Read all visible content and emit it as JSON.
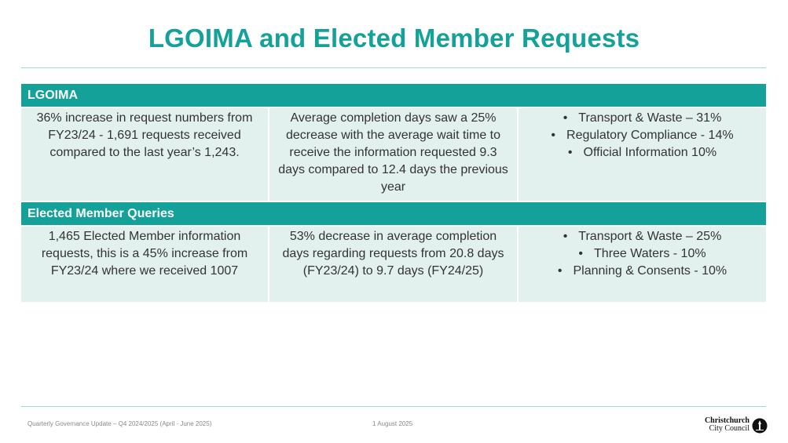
{
  "title": "LGOIMA and Elected Member Requests",
  "sections": [
    {
      "header": "LGOIMA",
      "col1": "36% increase in request numbers from FY23/24 -  1,691 requests received compared to the last year’s 1,243.",
      "col2": "Average completion days saw a 25% decrease with the average wait time to receive the information requested 9.3 days compared to 12.4 days the previous year",
      "bullets": [
        "Transport & Waste – 31%",
        "Regulatory Compliance - 14%",
        "Official Information 10%"
      ]
    },
    {
      "header": "Elected Member Queries",
      "col1": "1,465 Elected Member information requests, this is a 45% increase from FY23/24 where we received 1007",
      "col2": "53% decrease in average completion days regarding requests from 20.8 days (FY23/24) to 9.7 days (FY24/25)",
      "bullets": [
        "Transport & Waste – 25%",
        "Three Waters - 10%",
        "Planning & Consents - 10%"
      ]
    }
  ],
  "footer": {
    "left": "Quarterly Governance Update – Q4 2024/2025 (April - June 2025)",
    "center": "1 August 2025",
    "logo_line1": "Christchurch",
    "logo_line2": "City Council"
  },
  "colors": {
    "accent": "#14a19a",
    "cell_bg": "#e3f1ee",
    "text": "#333333"
  },
  "icons": {
    "logo_mark": "cathedral-logo-icon"
  }
}
